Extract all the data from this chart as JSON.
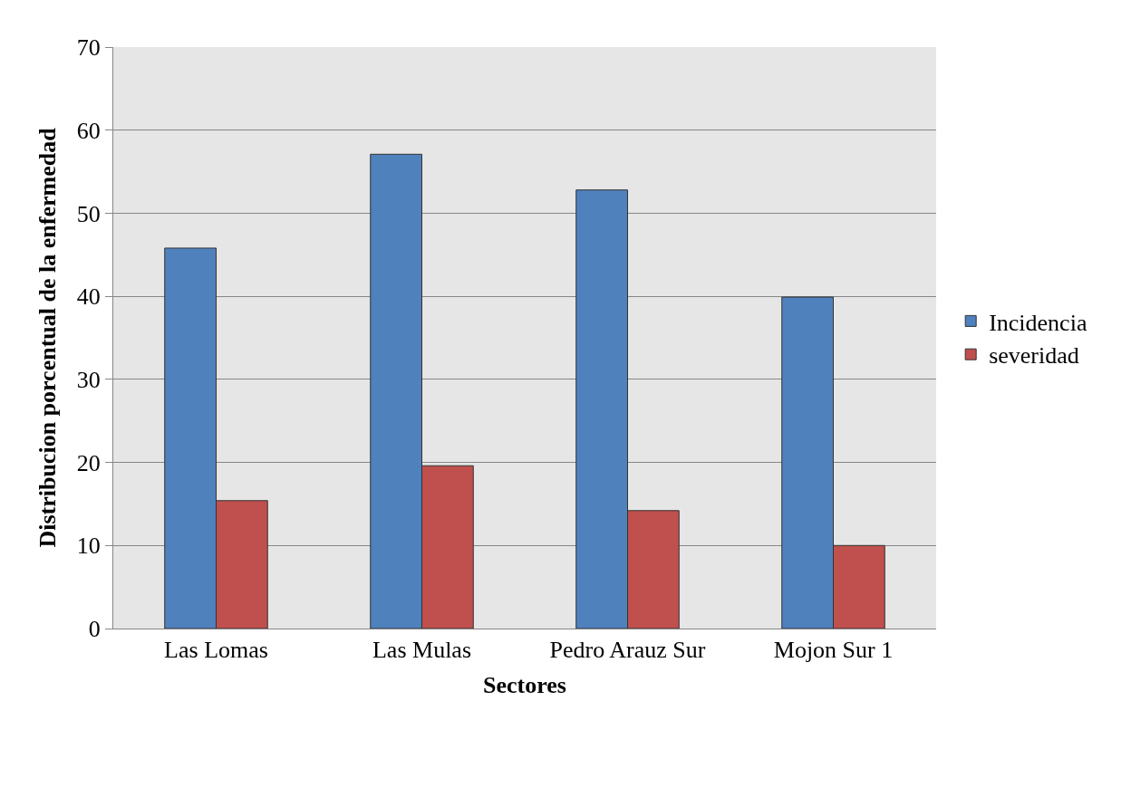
{
  "chart_data": {
    "type": "bar",
    "xlabel": "Sectores",
    "ylabel": "Distribucion porcentual de la enfermedad",
    "categories": [
      "Las Lomas",
      "Las Mulas",
      "Pedro Arauz Sur",
      "Mojon Sur 1"
    ],
    "series": [
      {
        "name": "Incidencia",
        "color": "#4f81bd",
        "values": [
          45.8,
          57.1,
          52.8,
          39.9
        ]
      },
      {
        "name": "severidad",
        "color": "#c0504d",
        "values": [
          15.4,
          19.6,
          14.2,
          10.0
        ]
      }
    ],
    "ylim": [
      0,
      70
    ],
    "yticks": [
      0,
      10,
      20,
      30,
      40,
      50,
      60,
      70
    ],
    "grid": "y",
    "legend": "right"
  }
}
